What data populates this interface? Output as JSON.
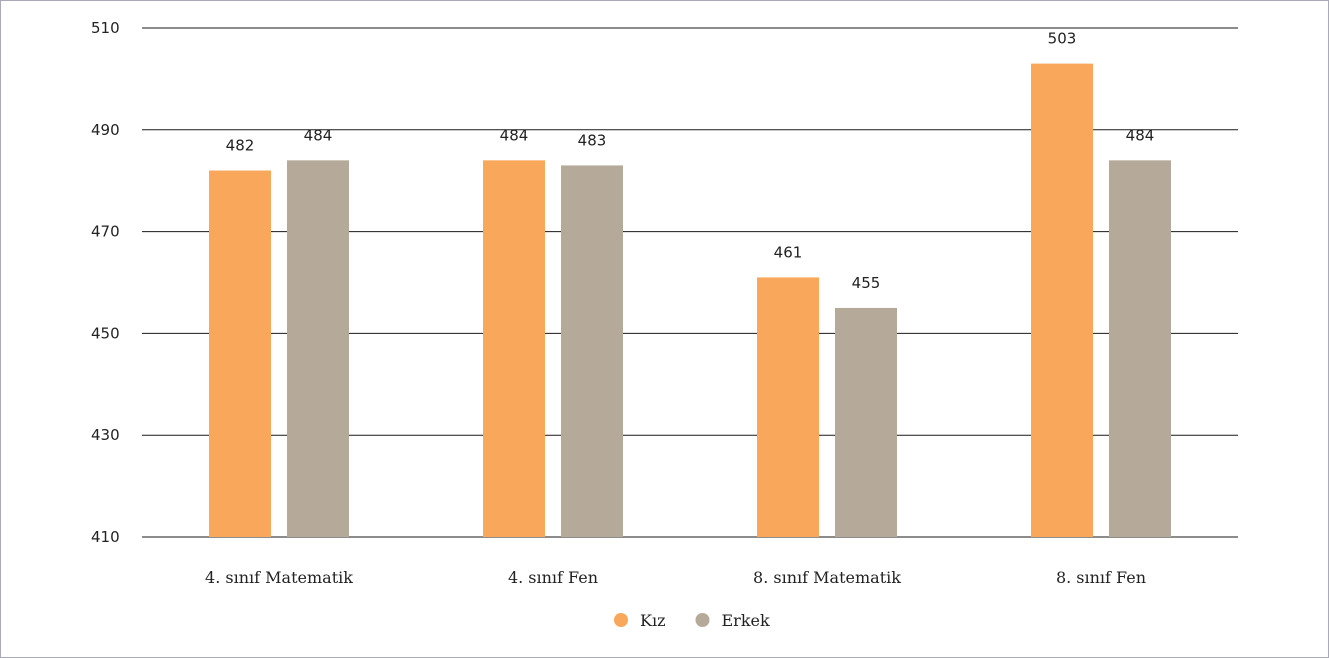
{
  "chart_data": {
    "type": "bar",
    "title": "",
    "xlabel": "",
    "ylabel": "",
    "categories": [
      "4. sınıf Matematik",
      "4. sınıf Fen",
      "8. sınıf Matematik",
      "8. sınıf Fen"
    ],
    "series": [
      {
        "name": "Kız",
        "values": [
          482,
          484,
          461,
          503
        ],
        "color": "#f9a75a"
      },
      {
        "name": "Erkek",
        "values": [
          484,
          483,
          455,
          484
        ],
        "color": "#b5aa9a"
      }
    ],
    "data_labels": [
      [
        "482",
        "484",
        "461",
        "503"
      ],
      [
        "484",
        "483",
        "455",
        "484"
      ]
    ],
    "ylim": [
      410,
      510
    ],
    "yticks": [
      410,
      430,
      450,
      470,
      490,
      510
    ],
    "grid": true,
    "legend_position": "bottom-center"
  }
}
